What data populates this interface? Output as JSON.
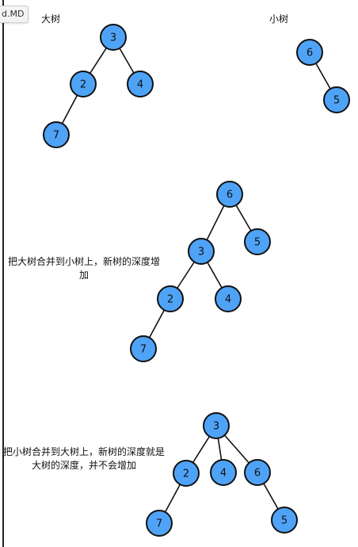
{
  "tab": {
    "label": "d.MD"
  },
  "captions": {
    "big_tree": "大树",
    "small_tree": "小树",
    "merge_big_into_small": "把大树合并到小树上，新树的深度增加",
    "merge_small_into_big": "把小树合并到大树上，新树的深度就是大树的深度，并不会增加"
  },
  "trees": {
    "big": {
      "nodes": [
        "3",
        "2",
        "4",
        "7"
      ]
    },
    "small": {
      "nodes": [
        "6",
        "5"
      ]
    },
    "big_into_small": {
      "nodes": [
        "6",
        "3",
        "5",
        "2",
        "4",
        "7"
      ]
    },
    "small_into_big": {
      "nodes": [
        "3",
        "2",
        "4",
        "6",
        "7",
        "5"
      ]
    }
  }
}
